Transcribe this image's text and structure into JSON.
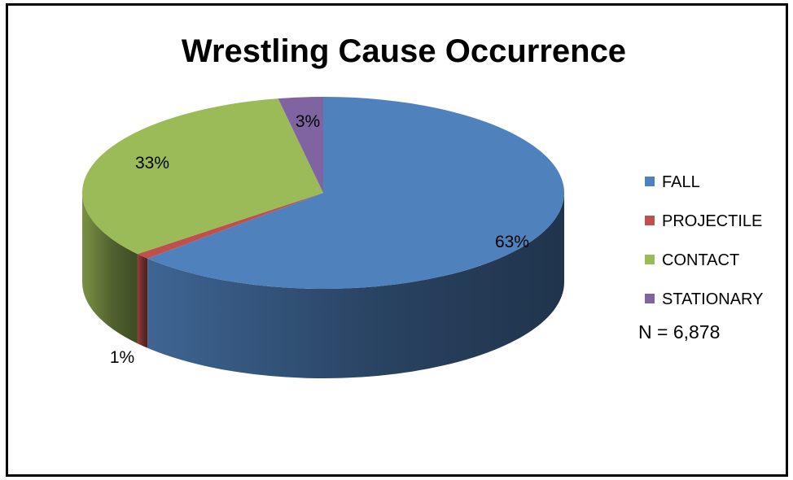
{
  "chart_data": {
    "type": "pie",
    "style": "3d",
    "title": "Wrestling Cause Occurrence",
    "categories": [
      "FALL",
      "PROJECTILE",
      "CONTACT",
      "STATIONARY"
    ],
    "values": [
      63,
      1,
      33,
      3
    ],
    "data_labels": [
      "63%",
      "1%",
      "33%",
      "3%"
    ],
    "colors": [
      "#4F81BD",
      "#C0504D",
      "#9BBB59",
      "#8064A2"
    ],
    "legend_position": "right",
    "note": "N = 6,878"
  }
}
